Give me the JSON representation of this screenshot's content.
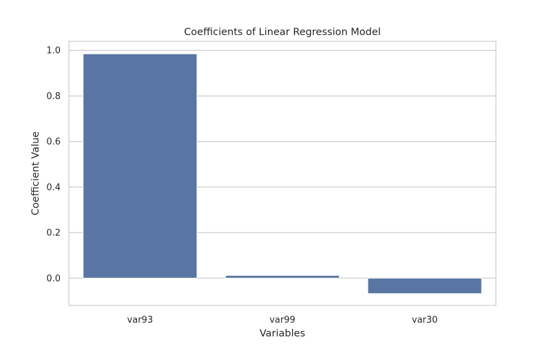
{
  "chart_data": {
    "type": "bar",
    "title": "Coefficients of Linear Regression Model",
    "xlabel": "Variables",
    "ylabel": "Coefficient Value",
    "categories": [
      "var93",
      "var99",
      "var30"
    ],
    "values": [
      0.985,
      0.012,
      -0.068
    ],
    "ylim": [
      -0.12,
      1.04
    ],
    "yticks": [
      0.0,
      0.2,
      0.4,
      0.6,
      0.8,
      1.0
    ],
    "ytick_labels": [
      "0.0",
      "0.2",
      "0.4",
      "0.6",
      "0.8",
      "1.0"
    ],
    "grid": true,
    "colors": {
      "bar": "#5975a4",
      "grid": "#cccccc",
      "frame": "#cccccc",
      "text": "#262626"
    }
  }
}
